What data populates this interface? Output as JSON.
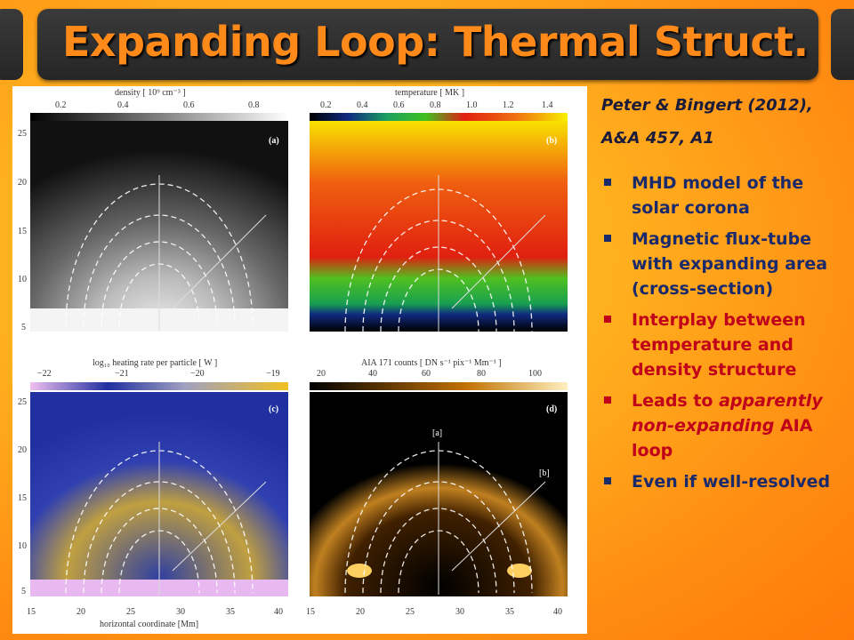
{
  "title": "Expanding Loop: Thermal Struct.",
  "citation": {
    "line1": "Peter & Bingert (2012),",
    "line2": "A&A 457, A1"
  },
  "bullets": [
    {
      "text": "MHD model of the solar corona",
      "color": "#1b2a6b"
    },
    {
      "text": "Magnetic flux-tube with expanding area (cross-section)",
      "color": "#1b2a6b"
    },
    {
      "text": "Interplay between temperature and density structure",
      "color": "#c0001a"
    },
    {
      "text_pre": "Leads to ",
      "text_em": "apparently non-expanding",
      "text_post": " AIA loop",
      "color": "#c0001a"
    },
    {
      "text": "Even if well-resolved",
      "color": "#1b2a6b"
    }
  ],
  "figure": {
    "panels": [
      {
        "id": "a",
        "label": "(a)",
        "cbar_title": "density  [ 10⁹ cm⁻³ ]",
        "cbar_ticks": [
          "0.2",
          "0.4",
          "0.6",
          "0.8"
        ]
      },
      {
        "id": "b",
        "label": "(b)",
        "cbar_title": "temperature  [ MK ]",
        "cbar_ticks": [
          "0.2",
          "0.4",
          "0.6",
          "0.8",
          "1.0",
          "1.2",
          "1.4"
        ]
      },
      {
        "id": "c",
        "label": "(c)",
        "cbar_title": "log₁₀ heating rate per particle  [ W ]",
        "cbar_ticks": [
          "−22",
          "−21",
          "−20",
          "−19"
        ]
      },
      {
        "id": "d",
        "label": "(d)",
        "cbar_title": "AIA 171 counts  [ DN s⁻¹ pix⁻¹ Mm⁻¹ ]",
        "cbar_ticks": [
          "20",
          "40",
          "60",
          "80",
          "100"
        ]
      }
    ],
    "y_ticks": [
      "25",
      "20",
      "15",
      "10",
      "5"
    ],
    "x_ticks": [
      "15",
      "20",
      "25",
      "30",
      "35",
      "40"
    ],
    "x_label": "horizontal coordinate  [Mm]",
    "cut_labels": [
      "[a]",
      "[b]"
    ]
  },
  "colors": {
    "title": "#ff8a1a",
    "bullet": "#1b2a6b"
  }
}
